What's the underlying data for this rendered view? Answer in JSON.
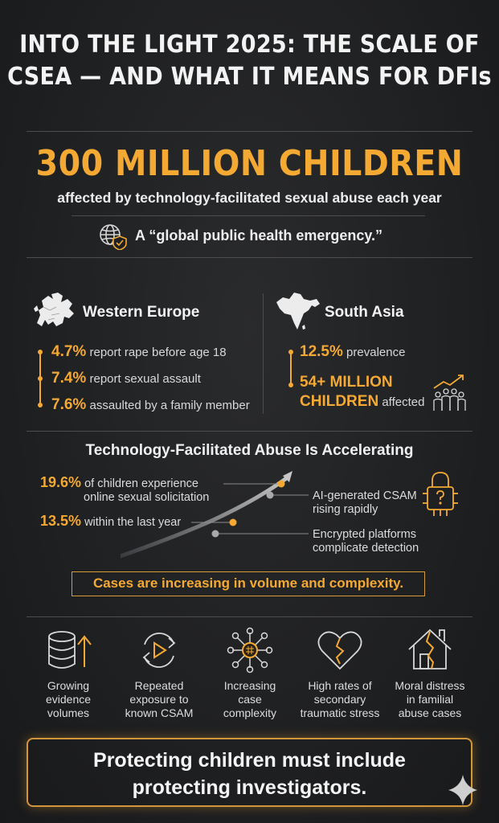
{
  "header": {
    "title_line1": "INTO THE LIGHT 2025: THE SCALE OF",
    "title_line2": "CSEA — AND WHAT IT MEANS FOR DFIs"
  },
  "hero": {
    "headline": "300 MILLION CHILDREN",
    "subheadline": "affected by technology-facilitated sexual abuse each year",
    "quote": "A “global public health emergency.”"
  },
  "regions": {
    "western_europe": {
      "name": "Western Europe",
      "stats": [
        {
          "value": "4.7%",
          "text": "report rape before age 18"
        },
        {
          "value": "7.4%",
          "text": "report sexual assault"
        },
        {
          "value": "7.6%",
          "text": "assaulted by a family member"
        }
      ]
    },
    "south_asia": {
      "name": "South Asia",
      "prevalence_value": "12.5%",
      "prevalence_text": "prevalence",
      "children_value_line1": "54+ MILLION",
      "children_value_line2": "CHILDREN",
      "children_text": "affected"
    }
  },
  "tech_abuse": {
    "title": "Technology-Facilitated Abuse Is Accelerating",
    "stat1_value": "19.6%",
    "stat1_text_line1": "of children experience",
    "stat1_text_line2": "online sexual solicitation",
    "stat2_value": "13.5%",
    "stat2_text": "within the last year",
    "ai_line1": "AI-generated CSAM",
    "ai_line2": "rising rapidly",
    "enc_line1": "Encrypted platforms",
    "enc_line2": "complicate detection",
    "callout": "Cases are increasing in volume and complexity."
  },
  "impacts": [
    {
      "icon": "database-arrow-icon",
      "line1": "Growing",
      "line2": "evidence",
      "line3": "volumes"
    },
    {
      "icon": "replay-icon",
      "line1": "Repeated",
      "line2": "exposure to",
      "line3": "known CSAM"
    },
    {
      "icon": "network-icon",
      "line1": "Increasing",
      "line2": "case",
      "line3": "complexity"
    },
    {
      "icon": "broken-heart-icon",
      "line1": "High rates of",
      "line2": "secondary",
      "line3": "traumatic stress"
    },
    {
      "icon": "broken-house-icon",
      "line1": "Moral distress",
      "line2": "in familial",
      "line3": "abuse cases"
    }
  ],
  "footer": {
    "line1": "Protecting children must include",
    "line2": "protecting investigators."
  },
  "colors": {
    "accent": "#f4a933",
    "background": "#1f2022",
    "text": "#ececec"
  }
}
